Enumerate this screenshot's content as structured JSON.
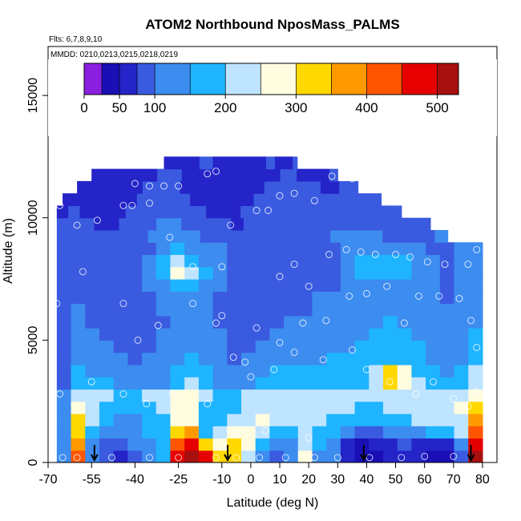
{
  "chart_data": {
    "type": "heatmap",
    "title": "ATOM2 Northbound NposMass_PALMS",
    "flights_note": "Flts: 6,7,8,9,10",
    "dates_note": "MMDD: 0210,0213,0215,0218,0219",
    "xlabel": "Latitude (deg N)",
    "ylabel": "Altitude (m)",
    "xlim": [
      -70,
      85
    ],
    "ylim": [
      0,
      17000
    ],
    "x_ticks": [
      -70,
      -55,
      -40,
      -25,
      -10,
      0,
      10,
      20,
      30,
      40,
      50,
      60,
      70,
      80
    ],
    "x_tick_labels": [
      "-70",
      "-55",
      "-40",
      "-25",
      "-10",
      "0",
      "10",
      "20",
      "30",
      "40",
      "50",
      "60",
      "70",
      "80"
    ],
    "y_ticks": [
      0,
      5000,
      10000,
      15000
    ],
    "y_tick_labels": [
      "0",
      "5000",
      "10000",
      "15000"
    ],
    "colorbar": {
      "range": [
        0,
        530
      ],
      "ticks": [
        0,
        50,
        100,
        200,
        300,
        400,
        500
      ],
      "tick_labels": [
        "0",
        "50",
        "100",
        "200",
        "300",
        "400",
        "500"
      ],
      "boundaries": [
        0,
        25,
        50,
        75,
        100,
        150,
        200,
        250,
        300,
        350,
        400,
        450,
        500,
        530
      ],
      "colors": [
        "#8b1fe0",
        "#1a0fb4",
        "#2424c8",
        "#3a5be0",
        "#3d8cf0",
        "#1fb4ff",
        "#bfe4ff",
        "#fffce0",
        "#ffd800",
        "#ff9900",
        "#ff5500",
        "#e60000",
        "#a81010"
      ]
    },
    "profile_arrows_lat": [
      -54,
      -8,
      39,
      76
    ],
    "altitude_bins": [
      0,
      500,
      1000,
      1500,
      2000,
      2500,
      3000,
      3500,
      4000,
      4500,
      5000,
      5500,
      6000,
      6500,
      7000,
      7500,
      8000,
      8500,
      9000,
      9500,
      10000,
      10500,
      11000,
      11500,
      12000,
      12500
    ],
    "lat_extent_by_bin": [
      [
        -67,
        80
      ],
      [
        -67,
        80
      ],
      [
        -67,
        80
      ],
      [
        -67,
        80
      ],
      [
        -67,
        80
      ],
      [
        -67,
        80
      ],
      [
        -67,
        80
      ],
      [
        -67,
        80
      ],
      [
        -67,
        80
      ],
      [
        -67,
        80
      ],
      [
        -67,
        80
      ],
      [
        -67,
        80
      ],
      [
        -67,
        80
      ],
      [
        -67,
        80
      ],
      [
        -67,
        80
      ],
      [
        -67,
        80
      ],
      [
        -67,
        80
      ],
      [
        -67,
        80
      ],
      [
        -67,
        68
      ],
      [
        -67,
        62
      ],
      [
        -67,
        52
      ],
      [
        -65,
        45
      ],
      [
        -60,
        37
      ],
      [
        -55,
        30
      ],
      [
        -30,
        16
      ]
    ],
    "value_field": [
      [
        130,
        420,
        120,
        80,
        70,
        90,
        120,
        150,
        460,
        520,
        480,
        320,
        300,
        240,
        100,
        90,
        120,
        260,
        130,
        110,
        60,
        40,
        45,
        60,
        70,
        50,
        40,
        45,
        80,
        500
      ],
      [
        120,
        380,
        130,
        90,
        80,
        100,
        140,
        180,
        420,
        480,
        300,
        280,
        330,
        260,
        180,
        120,
        140,
        240,
        160,
        120,
        70,
        45,
        50,
        60,
        80,
        60,
        50,
        60,
        120,
        460
      ],
      [
        110,
        330,
        160,
        110,
        100,
        110,
        150,
        190,
        330,
        360,
        190,
        200,
        280,
        260,
        220,
        170,
        160,
        220,
        190,
        150,
        110,
        80,
        90,
        100,
        130,
        140,
        150,
        160,
        200,
        420
      ],
      [
        100,
        300,
        200,
        150,
        130,
        120,
        160,
        190,
        280,
        290,
        170,
        180,
        220,
        240,
        250,
        220,
        200,
        220,
        210,
        180,
        160,
        150,
        150,
        160,
        180,
        200,
        220,
        230,
        240,
        360
      ],
      [
        100,
        270,
        230,
        190,
        170,
        150,
        170,
        200,
        270,
        280,
        180,
        160,
        180,
        200,
        230,
        220,
        210,
        220,
        230,
        210,
        200,
        180,
        180,
        200,
        200,
        210,
        220,
        230,
        250,
        300
      ],
      [
        100,
        230,
        220,
        200,
        190,
        190,
        200,
        220,
        260,
        260,
        200,
        170,
        180,
        200,
        220,
        230,
        230,
        230,
        240,
        230,
        220,
        200,
        210,
        240,
        230,
        220,
        220,
        230,
        240,
        270
      ],
      [
        90,
        180,
        170,
        150,
        140,
        130,
        120,
        140,
        170,
        200,
        170,
        130,
        120,
        140,
        160,
        170,
        170,
        180,
        190,
        180,
        180,
        160,
        220,
        320,
        260,
        200,
        160,
        150,
        160,
        220
      ],
      [
        90,
        150,
        140,
        120,
        110,
        100,
        110,
        130,
        160,
        180,
        150,
        120,
        110,
        120,
        130,
        150,
        150,
        150,
        160,
        160,
        170,
        170,
        200,
        310,
        250,
        190,
        150,
        140,
        150,
        200
      ],
      [
        80,
        130,
        120,
        110,
        100,
        95,
        100,
        120,
        140,
        150,
        140,
        110,
        95,
        100,
        110,
        120,
        130,
        130,
        140,
        150,
        150,
        160,
        180,
        190,
        180,
        160,
        140,
        130,
        140,
        180
      ],
      [
        80,
        120,
        110,
        100,
        95,
        90,
        95,
        110,
        130,
        140,
        130,
        110,
        90,
        90,
        100,
        110,
        120,
        120,
        130,
        130,
        140,
        150,
        160,
        170,
        160,
        150,
        130,
        120,
        130,
        160
      ],
      [
        80,
        110,
        100,
        90,
        85,
        80,
        85,
        100,
        120,
        130,
        120,
        100,
        85,
        85,
        90,
        100,
        110,
        110,
        120,
        120,
        130,
        140,
        150,
        160,
        150,
        140,
        120,
        110,
        120,
        150
      ],
      [
        80,
        100,
        95,
        85,
        80,
        75,
        80,
        95,
        110,
        120,
        110,
        95,
        80,
        80,
        85,
        90,
        100,
        100,
        110,
        110,
        120,
        130,
        140,
        150,
        140,
        130,
        110,
        105,
        110,
        140
      ],
      [
        80,
        100,
        90,
        85,
        80,
        80,
        85,
        100,
        110,
        110,
        100,
        90,
        80,
        80,
        85,
        90,
        95,
        95,
        100,
        105,
        110,
        120,
        130,
        140,
        130,
        120,
        105,
        100,
        105,
        130
      ],
      [
        80,
        95,
        90,
        80,
        75,
        80,
        90,
        110,
        120,
        120,
        110,
        95,
        80,
        75,
        80,
        85,
        90,
        95,
        100,
        100,
        105,
        110,
        120,
        130,
        120,
        110,
        100,
        95,
        100,
        120
      ],
      [
        80,
        90,
        85,
        80,
        75,
        85,
        100,
        140,
        170,
        160,
        130,
        100,
        85,
        75,
        75,
        80,
        85,
        90,
        95,
        95,
        100,
        105,
        110,
        120,
        110,
        105,
        100,
        95,
        100,
        110
      ],
      [
        80,
        90,
        85,
        80,
        80,
        90,
        110,
        190,
        250,
        220,
        160,
        110,
        90,
        80,
        75,
        80,
        85,
        90,
        90,
        95,
        100,
        150,
        180,
        180,
        150,
        110,
        100,
        95,
        100,
        110
      ],
      [
        80,
        90,
        85,
        80,
        80,
        90,
        100,
        150,
        200,
        190,
        140,
        105,
        90,
        80,
        75,
        80,
        85,
        85,
        90,
        95,
        100,
        160,
        190,
        190,
        150,
        110,
        100,
        95,
        100,
        110
      ],
      [
        80,
        85,
        80,
        80,
        80,
        85,
        95,
        120,
        150,
        140,
        120,
        100,
        90,
        80,
        75,
        80,
        85,
        85,
        90,
        95,
        100,
        110,
        120,
        120,
        110,
        100,
        95,
        90,
        100,
        110
      ],
      [
        80,
        85,
        80,
        75,
        75,
        80,
        85,
        100,
        110,
        110,
        100,
        90,
        85,
        80,
        75,
        80,
        80,
        85,
        85,
        90,
        95,
        100,
        100,
        100,
        100,
        95,
        90,
        90,
        95,
        100
      ],
      [
        75,
        80,
        75,
        70,
        70,
        75,
        80,
        90,
        100,
        100,
        95,
        85,
        80,
        75,
        70,
        75,
        80,
        80,
        85,
        85,
        90,
        90,
        90,
        95,
        95,
        90,
        85,
        85,
        90,
        95
      ],
      [
        70,
        75,
        70,
        65,
        65,
        70,
        75,
        85,
        95,
        95,
        90,
        80,
        75,
        70,
        65,
        70,
        75,
        75,
        80,
        80,
        85,
        85,
        85,
        90,
        90,
        85,
        80,
        80,
        85,
        90
      ],
      [
        70,
        70,
        65,
        60,
        60,
        65,
        70,
        80,
        90,
        90,
        85,
        75,
        70,
        65,
        60,
        65,
        70,
        70,
        75,
        75,
        80,
        80,
        80,
        85,
        85,
        80,
        75,
        75,
        80,
        85
      ],
      [
        65,
        65,
        60,
        55,
        55,
        60,
        65,
        75,
        85,
        85,
        80,
        70,
        65,
        60,
        55,
        60,
        65,
        65,
        70,
        70,
        75,
        75,
        75,
        80,
        80,
        75,
        70,
        70,
        75,
        80
      ],
      [
        60,
        60,
        55,
        50,
        50,
        55,
        60,
        70,
        80,
        80,
        75,
        65,
        60,
        55,
        50,
        55,
        60,
        60,
        65,
        65,
        70,
        70,
        70,
        75,
        75,
        70,
        65,
        65,
        70,
        75
      ],
      [
        60,
        60,
        55,
        50,
        50,
        55,
        60,
        70,
        80,
        80,
        75,
        65,
        60,
        55,
        50,
        55,
        60,
        60,
        65,
        65,
        70,
        70,
        70,
        75,
        75,
        70,
        65,
        65,
        70,
        75
      ]
    ],
    "sample_points": [
      [
        -65,
        200
      ],
      [
        -60,
        200
      ],
      [
        -48,
        200
      ],
      [
        -35,
        200
      ],
      [
        -25,
        200
      ],
      [
        -12,
        200
      ],
      [
        -5,
        200
      ],
      [
        3,
        200
      ],
      [
        12,
        200
      ],
      [
        22,
        200
      ],
      [
        30,
        200
      ],
      [
        41,
        200
      ],
      [
        52,
        200
      ],
      [
        60,
        250
      ],
      [
        70,
        250
      ],
      [
        -66,
        2800
      ],
      [
        -55,
        3300
      ],
      [
        -44,
        2800
      ],
      [
        -36,
        2400
      ],
      [
        -27,
        2800
      ],
      [
        -15,
        2400
      ],
      [
        -5,
        1200
      ],
      [
        5,
        1300
      ],
      [
        20,
        1000
      ],
      [
        -2,
        4100
      ],
      [
        0,
        3500
      ],
      [
        8,
        3800
      ],
      [
        15,
        4500
      ],
      [
        25,
        4200
      ],
      [
        35,
        4600
      ],
      [
        40,
        3800
      ],
      [
        48,
        3300
      ],
      [
        57,
        2800
      ],
      [
        63,
        3300
      ],
      [
        70,
        2600
      ],
      [
        75,
        2300
      ],
      [
        78,
        2900
      ],
      [
        -67,
        6500
      ],
      [
        -58,
        7800
      ],
      [
        -44,
        6500
      ],
      [
        -39,
        5000
      ],
      [
        -32,
        5600
      ],
      [
        -20,
        6500
      ],
      [
        -12,
        5700
      ],
      [
        -10,
        6000
      ],
      [
        -6,
        4300
      ],
      [
        2,
        5500
      ],
      [
        10,
        4900
      ],
      [
        18,
        5700
      ],
      [
        26,
        5800
      ],
      [
        34,
        6800
      ],
      [
        40,
        6900
      ],
      [
        47,
        7200
      ],
      [
        53,
        5700
      ],
      [
        58,
        6800
      ],
      [
        65,
        6800
      ],
      [
        72,
        6700
      ],
      [
        76,
        5800
      ],
      [
        78,
        4700
      ],
      [
        -66,
        10500
      ],
      [
        -60,
        9700
      ],
      [
        -53,
        9900
      ],
      [
        -44,
        10500
      ],
      [
        -41,
        10500
      ],
      [
        -35,
        10600
      ],
      [
        -28,
        9200
      ],
      [
        -20,
        8000
      ],
      [
        -10,
        8000
      ],
      [
        -7,
        9700
      ],
      [
        2,
        10300
      ],
      [
        6,
        10300
      ],
      [
        10,
        7600
      ],
      [
        15,
        8100
      ],
      [
        20,
        7200
      ],
      [
        27,
        8500
      ],
      [
        33,
        8700
      ],
      [
        38,
        8600
      ],
      [
        43,
        8500
      ],
      [
        50,
        8500
      ],
      [
        55,
        8400
      ],
      [
        61,
        8200
      ],
      [
        67,
        8100
      ],
      [
        75,
        8100
      ],
      [
        78,
        8700
      ],
      [
        -64,
        11700
      ],
      [
        -58,
        11800
      ],
      [
        -40,
        11400
      ],
      [
        -35,
        11300
      ],
      [
        -30,
        11300
      ],
      [
        -25,
        11300
      ],
      [
        -15,
        11800
      ],
      [
        -12,
        11900
      ],
      [
        10,
        10900
      ],
      [
        15,
        11000
      ],
      [
        22,
        10700
      ],
      [
        28,
        11700
      ],
      [
        35,
        11600
      ],
      [
        45,
        11500
      ],
      [
        60,
        10200
      ],
      [
        67,
        9700
      ]
    ]
  }
}
